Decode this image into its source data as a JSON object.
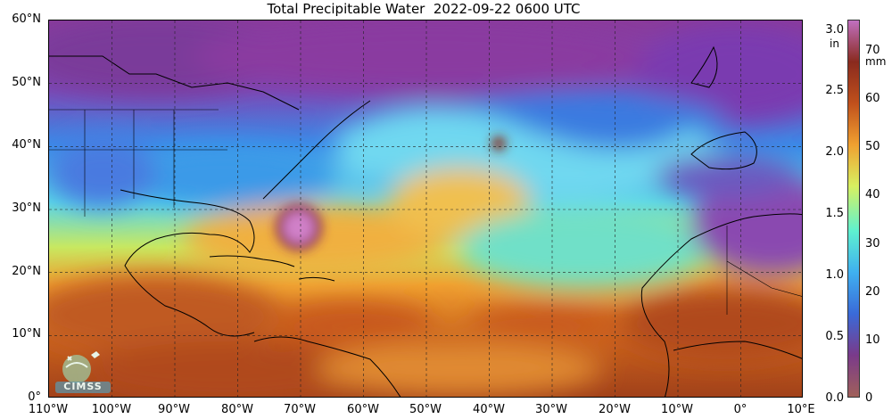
{
  "title": "Total Precipitable Water  2022-09-22 0600 UTC",
  "map": {
    "lat_ticks": [
      "60°N",
      "50°N",
      "40°N",
      "30°N",
      "20°N",
      "10°N",
      "0°"
    ],
    "lon_ticks": [
      "110°W",
      "100°W",
      "90°W",
      "80°W",
      "70°W",
      "60°W",
      "50°W",
      "40°W",
      "30°W",
      "20°W",
      "10°W",
      "0°",
      "10°E"
    ],
    "lat_range": [
      0,
      60
    ],
    "lon_range": [
      -110,
      10
    ],
    "gridlines": "dashed",
    "features": [
      "tropical cyclone moisture maximum near 29°N 70°W",
      "moist ITCZ band across tropics",
      "dry air over Sahara and North Atlantic"
    ]
  },
  "colorbar": {
    "in_ticks": [
      "3.0",
      "2.5",
      "2.0",
      "1.5",
      "1.0",
      "0.5",
      "0.0"
    ],
    "in_unit": "in",
    "mm_ticks": [
      "70",
      "60",
      "50",
      "40",
      "30",
      "20",
      "10",
      "0"
    ],
    "mm_unit": "mm",
    "colors": [
      "#a0605a",
      "#7a3a8a",
      "#3a6ad8",
      "#3fb0f0",
      "#5ef0d0",
      "#d8f060",
      "#f0a030",
      "#c0501c",
      "#8a2a1e",
      "#c070c0"
    ]
  },
  "logo": {
    "text": "CIMSS",
    "icon": "satellite-globe-icon"
  }
}
